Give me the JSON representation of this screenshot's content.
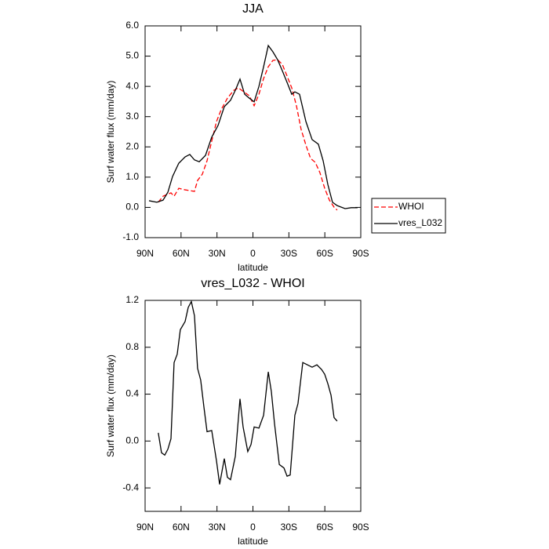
{
  "chart_data": [
    {
      "type": "line",
      "title": "JJA",
      "xlabel": "latitude",
      "ylabel": "Surf water flux (mm/day)",
      "xlim": [
        90,
        -90
      ],
      "xticks": [
        {
          "value": 90,
          "label": "90N"
        },
        {
          "value": 60,
          "label": "60N"
        },
        {
          "value": 30,
          "label": "30N"
        },
        0,
        {
          "value": -30,
          "label": "30S"
        },
        {
          "value": -60,
          "label": "60S"
        },
        {
          "value": -90,
          "label": "90S"
        }
      ],
      "ylim": [
        -1,
        6
      ],
      "yticks": [
        {
          "value": -1,
          "label": "-1.0"
        },
        {
          "value": 0,
          "label": "0.0"
        },
        {
          "value": 1,
          "label": "1.0"
        },
        {
          "value": 2,
          "label": "2.0"
        },
        {
          "value": 3,
          "label": "3.0"
        },
        {
          "value": 4,
          "label": "4.0"
        },
        {
          "value": 5,
          "label": "5.0"
        },
        {
          "value": 6,
          "label": "6.0"
        }
      ],
      "legend": "right",
      "series": [
        {
          "name": "WHOI",
          "color": "#ff0000",
          "linestyle": "dashed",
          "x": [
            79,
            75,
            68.4,
            65.8,
            61.9,
            56.6,
            48.8,
            46.2,
            42.2,
            38.3,
            34.4,
            30.4,
            26.5,
            21.3,
            16,
            12.1,
            6.9,
            3,
            -1,
            -5,
            -8.9,
            -12.8,
            -16.7,
            -20.6,
            -24.5,
            -28.5,
            -32.4,
            -36.3,
            -40.2,
            -44.2,
            -48.1,
            -52,
            -55.9,
            -59.9,
            -63.8,
            -67.7,
            -70.3
          ],
          "values": [
            0.17,
            0.37,
            0.48,
            0.37,
            0.63,
            0.58,
            0.53,
            0.89,
            1.1,
            1.54,
            2.19,
            2.84,
            3.23,
            3.61,
            3.87,
            3.95,
            3.8,
            3.69,
            3.36,
            3.74,
            4.26,
            4.65,
            4.86,
            4.88,
            4.73,
            4.34,
            3.95,
            3.36,
            2.58,
            2.06,
            1.62,
            1.49,
            1.15,
            0.63,
            0.24,
            0.01,
            -0.09
          ]
        },
        {
          "name": "vres_L032",
          "color": "#000000",
          "linestyle": "solid",
          "x": [
            86.7,
            80.2,
            75,
            71,
            67.1,
            61.9,
            56.6,
            52.7,
            48.8,
            44.8,
            39.6,
            34.4,
            29.1,
            23.9,
            18.7,
            14.7,
            10.8,
            6.9,
            3,
            -1,
            -5,
            -8.9,
            -12.8,
            -16.7,
            -20.6,
            -24.5,
            -28.5,
            -32.4,
            -35,
            -38.9,
            -44.2,
            -49.4,
            -54.6,
            -58.6,
            -62.5,
            -66.4,
            -70.3,
            -76.9,
            -82.1,
            -87.3
          ],
          "values": [
            0.22,
            0.17,
            0.24,
            0.5,
            1.02,
            1.46,
            1.67,
            1.75,
            1.57,
            1.51,
            1.72,
            2.32,
            2.71,
            3.33,
            3.54,
            3.87,
            4.24,
            3.74,
            3.61,
            3.49,
            4,
            4.65,
            5.35,
            5.14,
            4.88,
            4.52,
            4.13,
            3.74,
            3.82,
            3.74,
            2.84,
            2.24,
            2.09,
            1.54,
            0.76,
            0.17,
            0.06,
            -0.04,
            -0.01,
            -0.01
          ]
        }
      ]
    },
    {
      "type": "line",
      "title": "vres_L032 - WHOI",
      "xlabel": "latitude",
      "ylabel": "Surf water flux (mm/day)",
      "xlim": [
        90,
        -90
      ],
      "xticks": [
        {
          "value": 90,
          "label": "90N"
        },
        {
          "value": 60,
          "label": "60N"
        },
        {
          "value": 30,
          "label": "30N"
        },
        0,
        {
          "value": -30,
          "label": "30S"
        },
        {
          "value": -60,
          "label": "60S"
        },
        {
          "value": -90,
          "label": "90S"
        }
      ],
      "ylim": [
        -0.6,
        1.2
      ],
      "yticks": [
        -0.4,
        {
          "value": 0,
          "label": "0.0"
        },
        0.4,
        0.8,
        1.2
      ],
      "series": [
        {
          "color": "#000000",
          "linestyle": "solid",
          "x": [
            79,
            76.3,
            73.6,
            71,
            68.4,
            65.8,
            63.2,
            60.6,
            56.6,
            54,
            51.4,
            48.8,
            46.2,
            43.6,
            40.9,
            38.3,
            34.4,
            30.4,
            27.8,
            23.9,
            21.3,
            18.7,
            14.7,
            10.8,
            8.2,
            4.3,
            1.6,
            -1,
            -5,
            -8.9,
            -12.8,
            -15.4,
            -18,
            -22,
            -25.9,
            -28.5,
            -31.1,
            -35,
            -37.6,
            -41.6,
            -45.5,
            -49.4,
            -53.4,
            -57.3,
            -59.9,
            -62.5,
            -65.2,
            -67.7,
            -70.3
          ],
          "values": [
            0.07,
            -0.1,
            -0.12,
            -0.07,
            0.02,
            0.67,
            0.74,
            0.95,
            1.02,
            1.14,
            1.19,
            1.07,
            0.62,
            0.52,
            0.29,
            0.08,
            0.09,
            -0.17,
            -0.37,
            -0.15,
            -0.31,
            -0.33,
            -0.13,
            0.36,
            0.12,
            -0.09,
            -0.03,
            0.12,
            0.11,
            0.22,
            0.59,
            0.42,
            0.15,
            -0.2,
            -0.23,
            -0.3,
            -0.29,
            0.22,
            0.32,
            0.67,
            0.65,
            0.63,
            0.65,
            0.61,
            0.57,
            0.49,
            0.39,
            0.2,
            0.17
          ]
        }
      ]
    }
  ]
}
